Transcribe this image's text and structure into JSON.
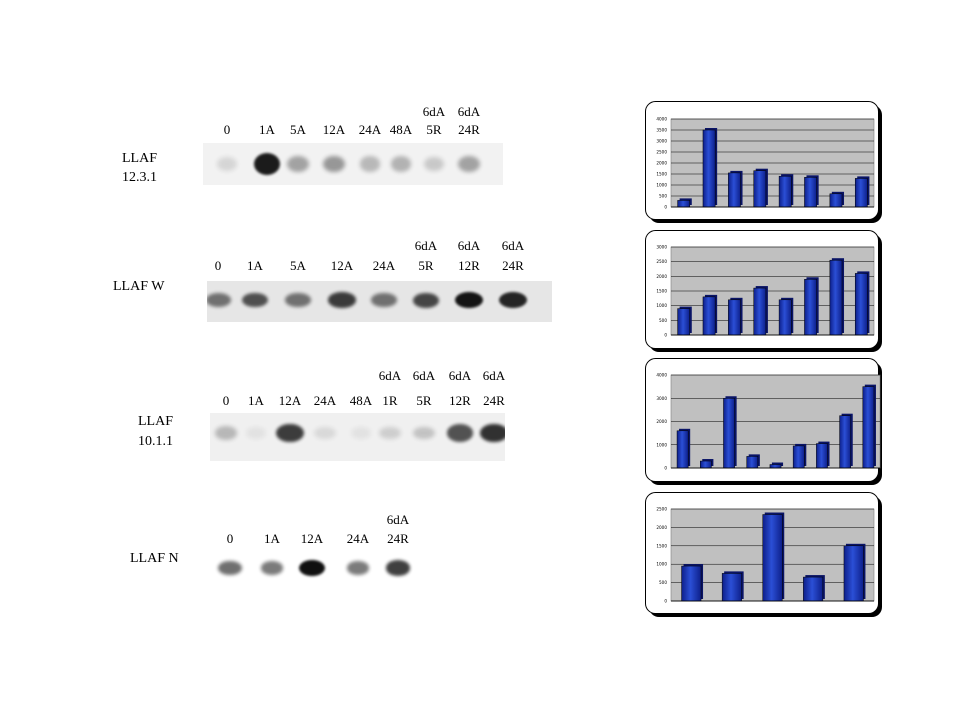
{
  "panels": [
    {
      "id": "p1",
      "name": [
        "LLAF",
        "12.3.1"
      ],
      "lanes": [
        {
          "top": "",
          "bottom": "0"
        },
        {
          "top": "",
          "bottom": "1A"
        },
        {
          "top": "",
          "bottom": "5A"
        },
        {
          "top": "",
          "bottom": "12A"
        },
        {
          "top": "",
          "bottom": "24A"
        },
        {
          "top": "",
          "bottom": "48A"
        },
        {
          "top": "6dA",
          "bottom": "5R"
        },
        {
          "top": "6dA",
          "bottom": "24R"
        }
      ],
      "band_intensity": [
        0.12,
        0.95,
        0.35,
        0.4,
        0.25,
        0.28,
        0.18,
        0.35
      ]
    },
    {
      "id": "p2",
      "name": [
        "LLAF W"
      ],
      "lanes": [
        {
          "top": "",
          "bottom": "0"
        },
        {
          "top": "",
          "bottom": "1A"
        },
        {
          "top": "",
          "bottom": "5A"
        },
        {
          "top": "",
          "bottom": "12A"
        },
        {
          "top": "",
          "bottom": "24A"
        },
        {
          "top": "6dA",
          "bottom": "5R"
        },
        {
          "top": "6dA",
          "bottom": "12R"
        },
        {
          "top": "6dA",
          "bottom": "24R"
        }
      ],
      "band_intensity": [
        0.55,
        0.7,
        0.55,
        0.8,
        0.55,
        0.75,
        0.98,
        0.9
      ]
    },
    {
      "id": "p3",
      "name": [
        "LLAF",
        "10.1.1"
      ],
      "lanes": [
        {
          "top": "",
          "bottom": "0"
        },
        {
          "top": "",
          "bottom": "1A"
        },
        {
          "top": "",
          "bottom": "12A"
        },
        {
          "top": "",
          "bottom": "24A"
        },
        {
          "top": "",
          "bottom": "48A"
        },
        {
          "top": "6dA",
          "bottom": "1R"
        },
        {
          "top": "6dA",
          "bottom": "5R"
        },
        {
          "top": "6dA",
          "bottom": "12R"
        },
        {
          "top": "6dA",
          "bottom": "24R"
        }
      ],
      "band_intensity": [
        0.25,
        0.05,
        0.8,
        0.1,
        0.05,
        0.15,
        0.2,
        0.7,
        0.85
      ]
    },
    {
      "id": "p4",
      "name": [
        "LLAF N"
      ],
      "lanes": [
        {
          "top": "",
          "bottom": "0"
        },
        {
          "top": "",
          "bottom": "1A"
        },
        {
          "top": "",
          "bottom": "12A"
        },
        {
          "top": "",
          "bottom": "24A"
        },
        {
          "top": "6dA",
          "bottom": "24R"
        }
      ],
      "band_intensity": [
        0.6,
        0.55,
        1.0,
        0.55,
        0.8
      ]
    }
  ],
  "chart_data": [
    {
      "type": "bar",
      "ylim": [
        0,
        4000
      ],
      "yticks": [
        "0",
        "500",
        "1000",
        "1500",
        "2000",
        "2500",
        "3000",
        "3500",
        "4000"
      ],
      "values": [
        300,
        3500,
        1550,
        1650,
        1400,
        1350,
        600,
        1300
      ],
      "grid": true
    },
    {
      "type": "bar",
      "ylim": [
        0,
        3000
      ],
      "yticks": [
        "0",
        "500",
        "1000",
        "1500",
        "2000",
        "2500",
        "3000"
      ],
      "values": [
        900,
        1300,
        1200,
        1600,
        1200,
        1900,
        2550,
        2100
      ],
      "grid": true
    },
    {
      "type": "bar",
      "ylim": [
        0,
        4000
      ],
      "yticks": [
        "0",
        "1000",
        "2000",
        "3000",
        "4000"
      ],
      "values": [
        1600,
        300,
        3000,
        500,
        150,
        950,
        1050,
        2250,
        3500
      ],
      "grid": true
    },
    {
      "type": "bar",
      "ylim": [
        0,
        2500
      ],
      "yticks": [
        "0",
        "500",
        "1000",
        "1500",
        "2000",
        "2500"
      ],
      "values": [
        950,
        750,
        2350,
        650,
        1500
      ],
      "grid": true
    }
  ],
  "colors": {
    "bar": "#2b4fd6",
    "bar_dark": "#0d1f8a",
    "plot_bg": "#c0c0c0",
    "band": "#101010"
  }
}
